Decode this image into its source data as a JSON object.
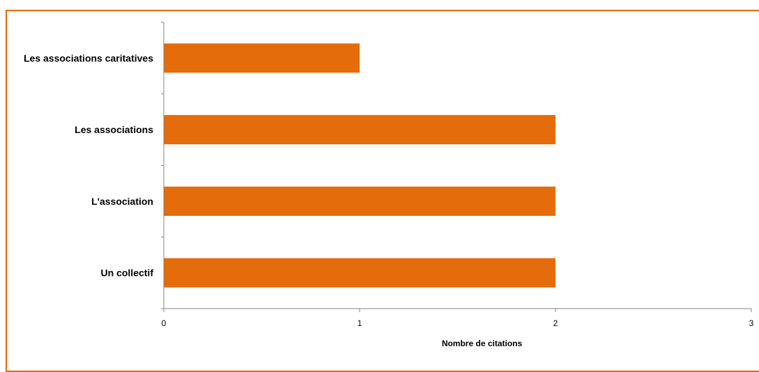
{
  "chart_data": {
    "type": "bar",
    "orientation": "horizontal",
    "categories": [
      "Les associations caritatives",
      "Les associations",
      "L'association",
      "Un collectif"
    ],
    "values": [
      1,
      2,
      2,
      2
    ],
    "title": "",
    "xlabel": "Nombre de citations",
    "ylabel": "",
    "xlim": [
      0,
      3
    ],
    "x_ticks": [
      "0",
      "1",
      "2",
      "3"
    ],
    "grid": false,
    "legend": "none",
    "bar_color": "#e46c0a",
    "frame_color": "#e46c0a"
  }
}
